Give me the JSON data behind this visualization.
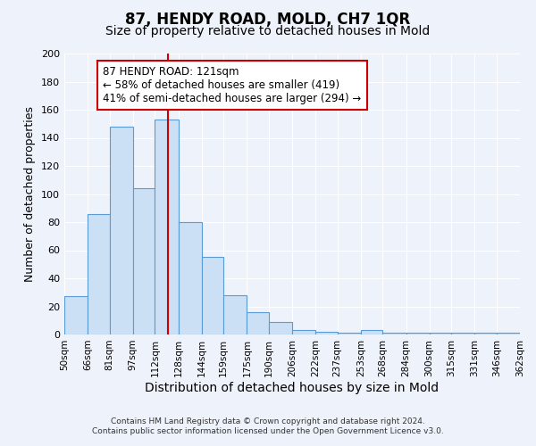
{
  "title": "87, HENDY ROAD, MOLD, CH7 1QR",
  "subtitle": "Size of property relative to detached houses in Mold",
  "xlabel": "Distribution of detached houses by size in Mold",
  "ylabel": "Number of detached properties",
  "bar_values": [
    27,
    86,
    148,
    104,
    153,
    80,
    55,
    28,
    16,
    9,
    3,
    2,
    1,
    3,
    1,
    1,
    1,
    1,
    1,
    1,
    1
  ],
  "bin_edges": [
    50,
    66,
    81,
    97,
    112,
    128,
    144,
    159,
    175,
    190,
    206,
    222,
    237,
    253,
    268,
    284,
    300,
    315,
    331,
    346,
    362
  ],
  "bar_color": "#cce0f5",
  "bar_edge_color": "#5b9bd5",
  "vline_x": 121,
  "vline_color": "#cc0000",
  "ylim": [
    0,
    200
  ],
  "yticks": [
    0,
    20,
    40,
    60,
    80,
    100,
    120,
    140,
    160,
    180,
    200
  ],
  "annotation_title": "87 HENDY ROAD: 121sqm",
  "annotation_line1": "← 58% of detached houses are smaller (419)",
  "annotation_line2": "41% of semi-detached houses are larger (294) →",
  "footer1": "Contains HM Land Registry data © Crown copyright and database right 2024.",
  "footer2": "Contains public sector information licensed under the Open Government Licence v3.0.",
  "title_fontsize": 12,
  "subtitle_fontsize": 10,
  "tick_label_fontsize": 7.5,
  "ylabel_fontsize": 9,
  "xlabel_fontsize": 10,
  "annotation_fontsize": 8.5,
  "background_color": "#eef2fa"
}
